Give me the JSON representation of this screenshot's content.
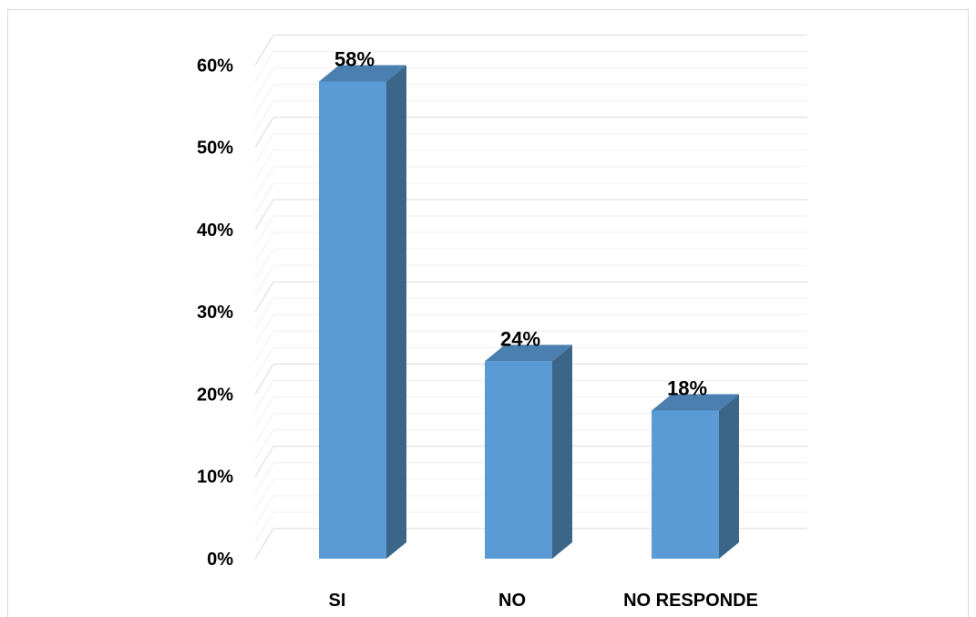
{
  "chart_data": {
    "type": "bar",
    "categories": [
      "SI",
      "NO",
      "NO RESPONDE"
    ],
    "values": [
      58,
      24,
      18
    ],
    "data_labels": [
      "58%",
      "24%",
      "18%"
    ],
    "y_tick_labels": [
      "0%",
      "10%",
      "20%",
      "30%",
      "40%",
      "50%",
      "60%"
    ],
    "ylim": [
      0,
      60
    ],
    "y_major_step": 10,
    "y_minor_step": 2,
    "grid": true,
    "three_d": true,
    "legend": "none",
    "colors": {
      "bar_front": "#5b9bd5",
      "bar_side": "#3b6589",
      "bar_top": "#4a7fb0",
      "grid_major": "#d9d9d9",
      "grid_minor": "#f0f0f0"
    }
  }
}
